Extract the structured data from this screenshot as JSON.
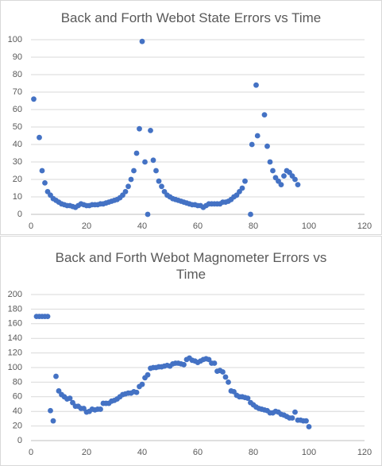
{
  "chart_data": [
    {
      "type": "scatter",
      "title": "Back and Forth Webot State Errors vs Time",
      "color": "#4472c4",
      "grid": true,
      "xlim": [
        0,
        120
      ],
      "xticks": [
        0,
        20,
        40,
        60,
        80,
        100,
        120
      ],
      "ylim": [
        0,
        100
      ],
      "yticks": [
        0,
        10,
        20,
        30,
        40,
        50,
        60,
        70,
        80,
        90,
        100
      ],
      "x": [
        1,
        3,
        4,
        5,
        6,
        7,
        8,
        9,
        10,
        11,
        12,
        13,
        14,
        15,
        16,
        17,
        18,
        19,
        20,
        21,
        22,
        23,
        24,
        25,
        26,
        27,
        28,
        29,
        30,
        31,
        32,
        33,
        34,
        35,
        36,
        37,
        38,
        39,
        40,
        41,
        42,
        43,
        44,
        45,
        46,
        47,
        48,
        49,
        50,
        51,
        52,
        53,
        54,
        55,
        56,
        57,
        58,
        59,
        60,
        61,
        62,
        63,
        64,
        65,
        66,
        67,
        68,
        69,
        70,
        71,
        72,
        73,
        74,
        75,
        76,
        77,
        79,
        79.5,
        81,
        81.5,
        84,
        85,
        86,
        87,
        88,
        89,
        90,
        91,
        92,
        93,
        94,
        95,
        96
      ],
      "values": [
        66,
        44,
        25,
        18,
        13,
        11,
        9,
        8,
        7,
        6,
        5.5,
        5,
        5,
        4.5,
        4,
        5,
        6,
        5.5,
        5,
        5,
        5.5,
        5.5,
        5.5,
        6,
        6,
        6.5,
        7,
        7.5,
        8,
        8.5,
        9.5,
        11,
        13,
        16,
        20,
        25,
        35,
        49,
        99,
        30,
        0,
        48,
        31,
        25,
        19,
        16,
        13,
        11,
        10,
        9,
        8.5,
        8,
        7.5,
        7,
        6.5,
        6,
        5.5,
        5.5,
        5,
        5,
        4,
        5,
        6,
        6,
        6,
        6,
        6,
        7,
        7,
        7.5,
        8.5,
        10,
        11,
        13,
        15,
        19,
        0,
        40,
        74,
        45,
        57,
        39,
        30,
        25,
        21,
        19,
        17,
        22,
        25,
        24,
        22,
        20,
        17
      ]
    },
    {
      "type": "scatter",
      "title": "Back and Forth Webot Magnometer Errors vs Time",
      "color": "#4472c4",
      "grid": true,
      "xlim": [
        0,
        120
      ],
      "xticks": [
        0,
        20,
        40,
        60,
        80,
        100,
        120
      ],
      "ylim": [
        0,
        200
      ],
      "yticks": [
        0,
        20,
        40,
        60,
        80,
        100,
        120,
        140,
        160,
        180,
        200
      ],
      "x": [
        2,
        3,
        4,
        5,
        6,
        7,
        8,
        9,
        10,
        11,
        12,
        13,
        14,
        15,
        16,
        17,
        18,
        19,
        20,
        21,
        22,
        23,
        24,
        25,
        26,
        27,
        28,
        29,
        30,
        31,
        32,
        33,
        34,
        35,
        36,
        37,
        38,
        39,
        40,
        41,
        42,
        43,
        44,
        45,
        46,
        47,
        48,
        49,
        50,
        51,
        52,
        53,
        54,
        55,
        56,
        57,
        58,
        59,
        60,
        61,
        62,
        63,
        64,
        65,
        66,
        67,
        68,
        69,
        70,
        71,
        72,
        73,
        74,
        75,
        76,
        77,
        78,
        79,
        80,
        81,
        82,
        83,
        84,
        85,
        86,
        87,
        88,
        89,
        90,
        91,
        92,
        93,
        94,
        95,
        96,
        97,
        98,
        99,
        100
      ],
      "values": [
        170,
        170,
        170,
        170,
        170,
        41,
        27,
        88,
        68,
        63,
        60,
        57,
        58,
        52,
        47,
        47,
        44,
        44,
        39,
        40,
        43,
        42,
        43,
        43,
        51,
        51,
        51,
        54,
        55,
        57,
        60,
        63,
        64,
        65,
        65,
        67,
        66,
        74,
        77,
        86,
        90,
        99,
        100,
        100,
        101,
        101,
        102,
        103,
        102,
        105,
        106,
        106,
        105,
        104,
        111,
        113,
        110,
        109,
        107,
        109,
        111,
        112,
        111,
        106,
        106,
        95,
        96,
        94,
        87,
        80,
        68,
        67,
        62,
        60,
        60,
        59,
        58,
        52,
        49,
        46,
        44,
        43,
        42,
        41,
        38,
        38,
        40,
        39,
        36,
        35,
        33,
        31,
        31,
        39,
        28,
        28,
        27,
        27,
        19
      ]
    }
  ]
}
